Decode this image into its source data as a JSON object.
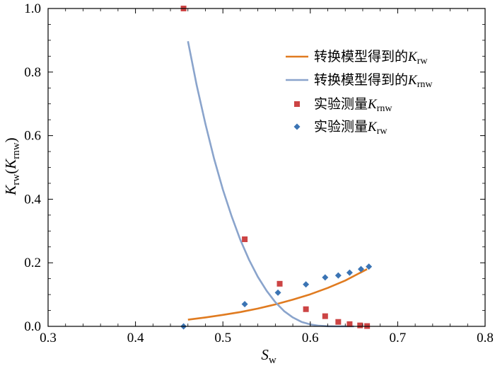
{
  "chart_data": {
    "type": "scatter",
    "xlabel": {
      "main": "S",
      "sub": "w"
    },
    "ylabel": {
      "main": "K",
      "sub": "rw",
      "paren_main": "K",
      "paren_sub": "rnw"
    },
    "xlim": [
      0.3,
      0.8
    ],
    "ylim": [
      0.0,
      1.0
    ],
    "x_ticks": [
      "0.3",
      "0.4",
      "0.5",
      "0.6",
      "0.7",
      "0.8"
    ],
    "y_ticks": [
      "0.0",
      "0.2",
      "0.4",
      "0.6",
      "0.8",
      "1.0"
    ],
    "grid": false,
    "legend_position": "top-right",
    "colors": {
      "krw_model": "#e07b20",
      "krnw_model": "#8aa4cc",
      "krnw_measured": "#cc4444",
      "krw_measured": "#3b74b4"
    },
    "series": [
      {
        "name": "转换模型得到的K_rw",
        "legend": {
          "prefix": "转换模型得到的",
          "main": "K",
          "sub": "rw"
        },
        "kind": "line",
        "x": [
          0.46,
          0.48,
          0.5,
          0.52,
          0.54,
          0.56,
          0.58,
          0.6,
          0.62,
          0.64,
          0.665
        ],
        "y": [
          0.021,
          0.028,
          0.036,
          0.045,
          0.056,
          0.069,
          0.084,
          0.101,
          0.121,
          0.144,
          0.18
        ]
      },
      {
        "name": "转换模型得到的K_rnw",
        "legend": {
          "prefix": "转换模型得到的",
          "main": "K",
          "sub": "rnw"
        },
        "kind": "line",
        "x": [
          0.46,
          0.47,
          0.48,
          0.49,
          0.5,
          0.51,
          0.52,
          0.53,
          0.54,
          0.55,
          0.56,
          0.57,
          0.58,
          0.59,
          0.6,
          0.61,
          0.62,
          0.63,
          0.64,
          0.65
        ],
        "y": [
          0.897,
          0.759,
          0.637,
          0.527,
          0.43,
          0.346,
          0.272,
          0.209,
          0.156,
          0.112,
          0.076,
          0.048,
          0.028,
          0.014,
          0.006,
          0.002,
          0.0005,
          0.0001,
          0.0,
          0.0
        ]
      },
      {
        "name": "实验测量K_rnw",
        "legend": {
          "prefix": "实验测量",
          "main": "K",
          "sub": "rnw"
        },
        "kind": "square",
        "x": [
          0.455,
          0.525,
          0.565,
          0.595,
          0.617,
          0.632,
          0.645,
          0.657,
          0.665
        ],
        "y": [
          1.0,
          0.274,
          0.134,
          0.054,
          0.032,
          0.014,
          0.007,
          0.003,
          0.001
        ]
      },
      {
        "name": "实验测量K_rw",
        "legend": {
          "prefix": "实验测量",
          "main": "K",
          "sub": "rw"
        },
        "kind": "diamond",
        "x": [
          0.455,
          0.525,
          0.563,
          0.595,
          0.617,
          0.632,
          0.645,
          0.658,
          0.667
        ],
        "y": [
          0.0,
          0.07,
          0.106,
          0.132,
          0.154,
          0.16,
          0.169,
          0.18,
          0.188
        ]
      }
    ]
  }
}
